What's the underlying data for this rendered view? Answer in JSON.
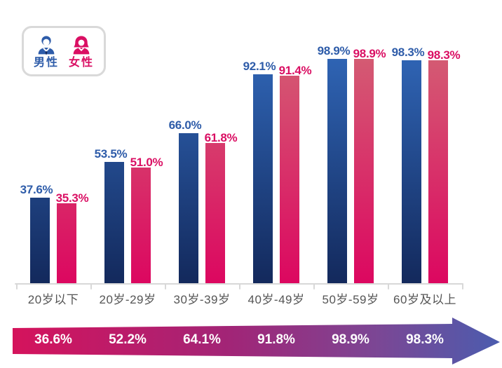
{
  "legend": {
    "male_label": "男性",
    "female_label": "女性"
  },
  "colors": {
    "male": "#2e5ca9",
    "male_bar_top": "#2f64b4",
    "male_bar_bottom": "#13295c",
    "female": "#da0f63",
    "female_bar_top": "#d45b73",
    "female_bar_bottom": "#dc0760",
    "axis": "#d8d8d8",
    "category_text": "#555555",
    "legend_border": "#d9d9d9",
    "arrow_start": "#d5135c",
    "arrow_mid1": "#a12577",
    "arrow_mid2": "#7b4795",
    "arrow_end": "#4b5cae",
    "arrow_text": "#ffffff"
  },
  "chart_data": {
    "type": "bar",
    "categories": [
      "20岁以下",
      "20岁-29岁",
      "30岁-39岁",
      "40岁-49岁",
      "50岁-59岁",
      "60岁及以上"
    ],
    "series": [
      {
        "name": "男性",
        "values": [
          37.6,
          53.5,
          66.0,
          92.1,
          98.9,
          98.3
        ]
      },
      {
        "name": "女性",
        "values": [
          35.3,
          51.0,
          61.8,
          91.4,
          98.9,
          98.3
        ]
      }
    ],
    "value_suffix": "%",
    "ylim": [
      0,
      100
    ],
    "grid": false,
    "legend_position": "top-left",
    "totals_arrow": {
      "values": [
        36.6,
        52.2,
        64.1,
        91.8,
        98.9,
        98.3
      ]
    }
  }
}
